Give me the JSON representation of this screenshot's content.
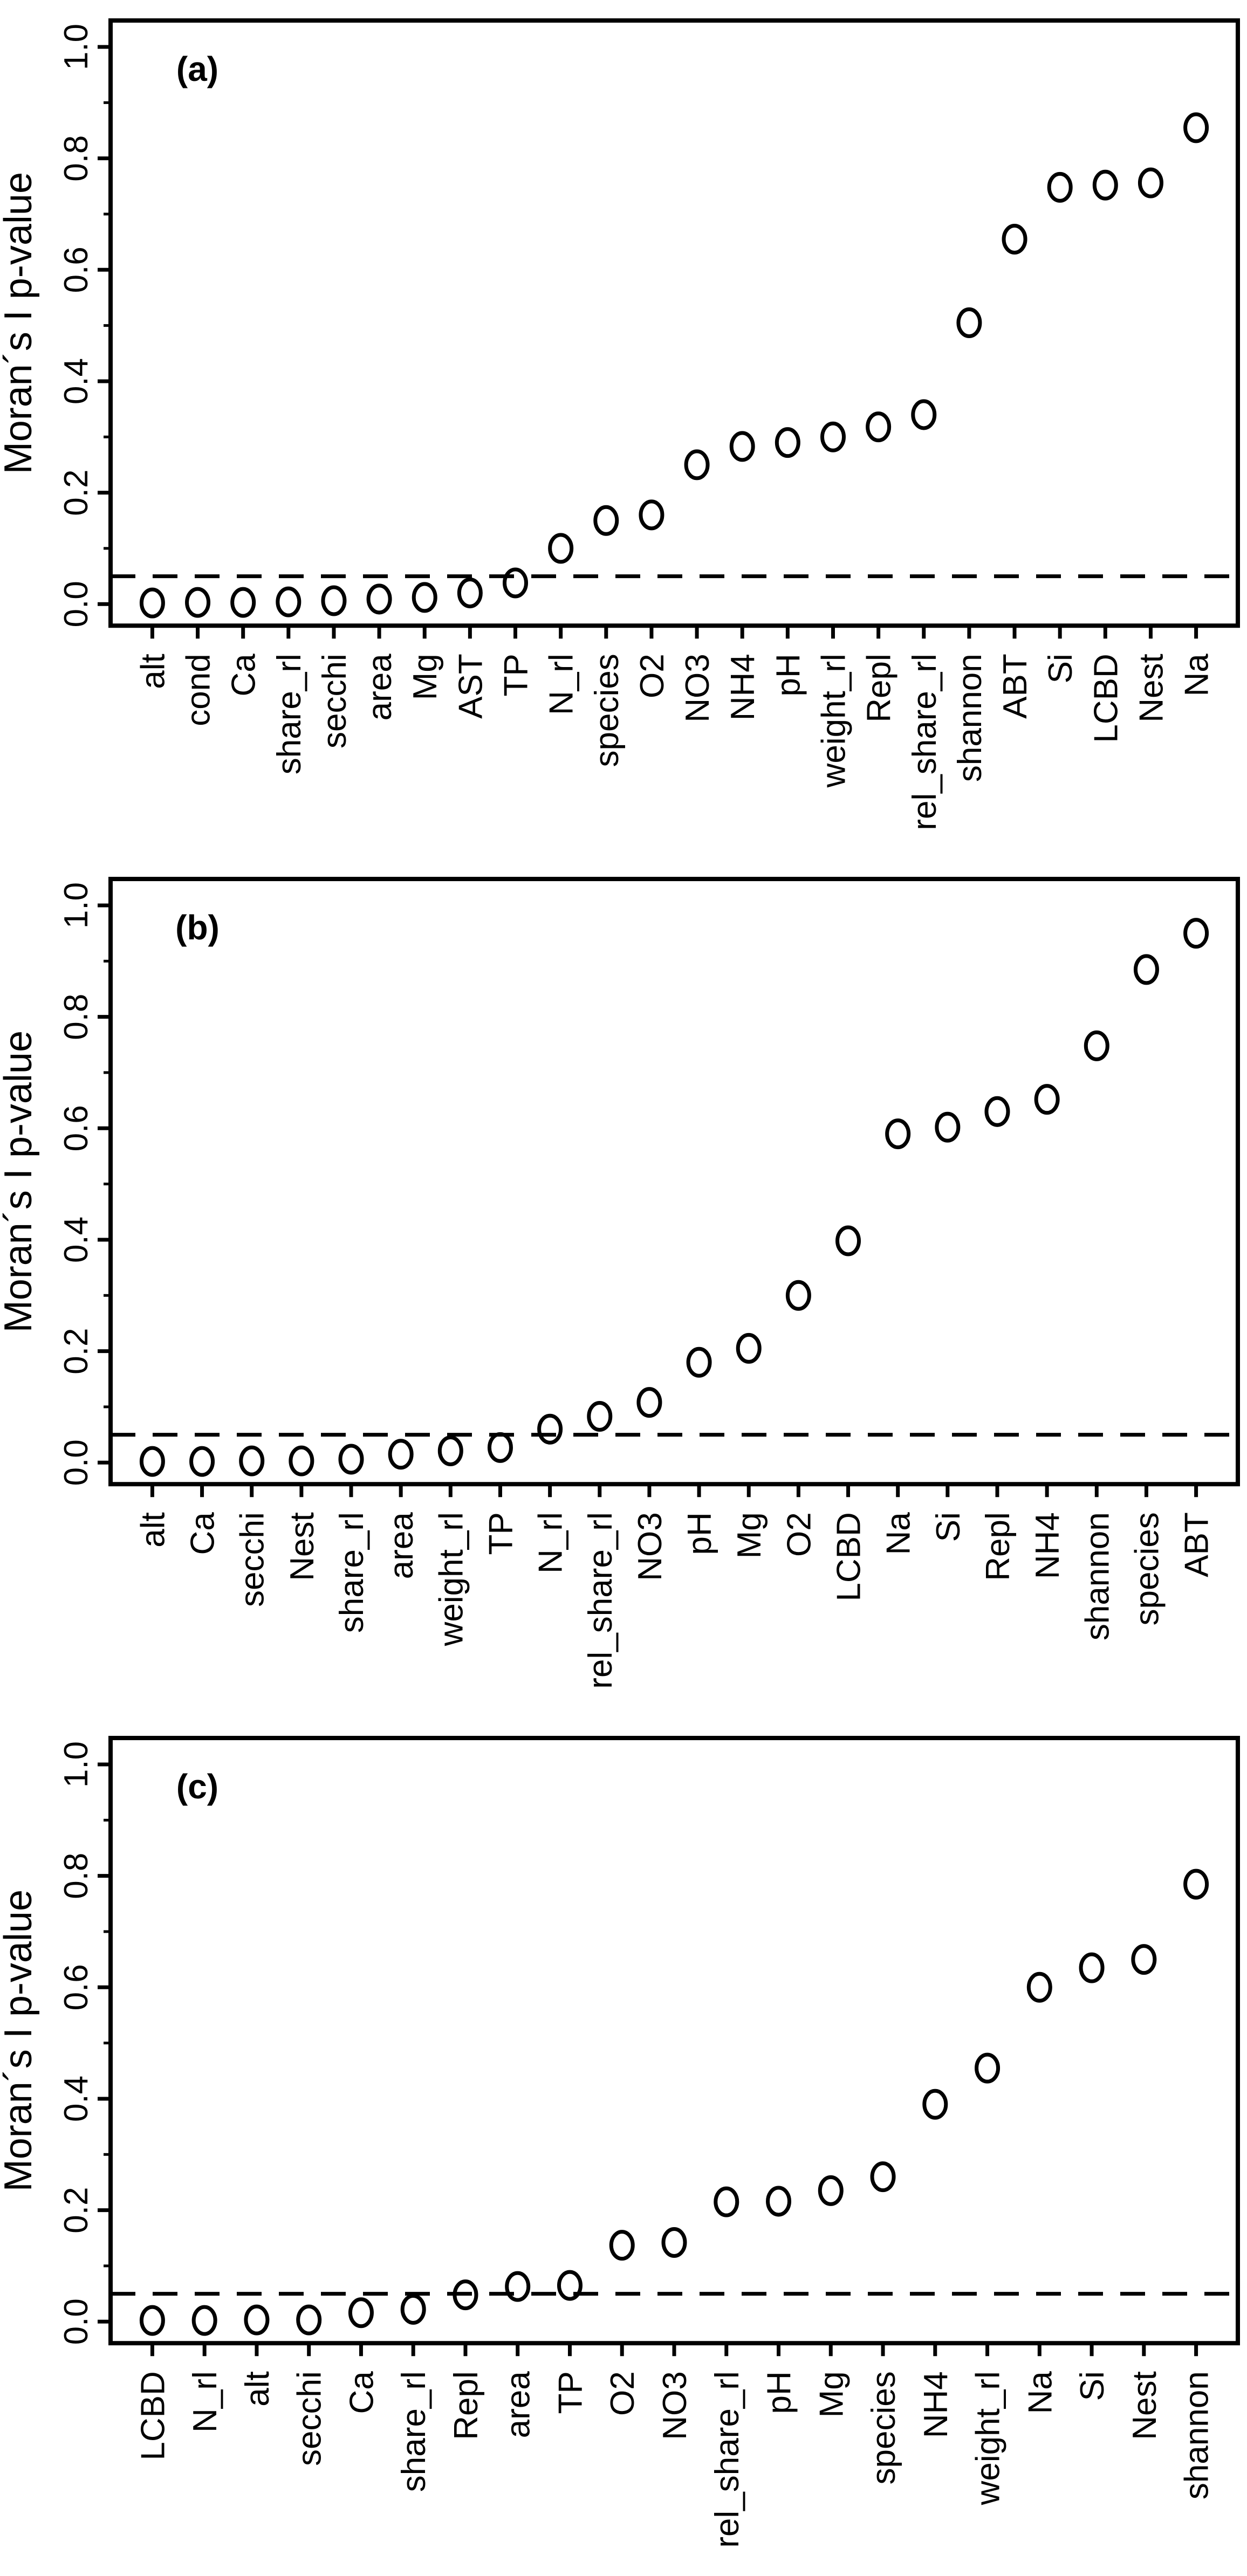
{
  "figure": {
    "background": "#ffffff",
    "ink_color": "#000000",
    "y_axis_title": "Moran´s I p-value",
    "y_tick_labels": [
      "0.0",
      "0.2",
      "0.4",
      "0.6",
      "0.8",
      "1.0"
    ],
    "significance_threshold": 0.05
  },
  "chart_data": [
    {
      "type": "scatter",
      "panel_label": "(a)",
      "ylabel": "Moran´s I p-value",
      "xlabel": "",
      "ylim": [
        0,
        1
      ],
      "y_ticks": [
        0.0,
        0.2,
        0.4,
        0.6,
        0.8,
        1.0
      ],
      "grid": false,
      "marker": "open-circle",
      "dashed_line_y": 0.05,
      "categories": [
        "alt",
        "cond",
        "Ca",
        "share_rl",
        "secchi",
        "area",
        "Mg",
        "AST",
        "TP",
        "N_rl",
        "species",
        "O2",
        "NO3",
        "NH4",
        "pH",
        "weight_rl",
        "Repl",
        "rel_share_rl",
        "shannon",
        "ABT",
        "Si",
        "LCBD",
        "Nest",
        "Na"
      ],
      "values": [
        0.002,
        0.003,
        0.003,
        0.004,
        0.006,
        0.009,
        0.012,
        0.02,
        0.038,
        0.1,
        0.15,
        0.16,
        0.25,
        0.283,
        0.29,
        0.3,
        0.318,
        0.34,
        0.505,
        0.655,
        0.748,
        0.752,
        0.756,
        0.855
      ]
    },
    {
      "type": "scatter",
      "panel_label": "(b)",
      "ylabel": "Moran´s I p-value",
      "xlabel": "",
      "ylim": [
        0,
        1
      ],
      "y_ticks": [
        0.0,
        0.2,
        0.4,
        0.6,
        0.8,
        1.0
      ],
      "grid": false,
      "marker": "open-circle",
      "dashed_line_y": 0.05,
      "categories": [
        "alt",
        "Ca",
        "secchi",
        "Nest",
        "share_rl",
        "area",
        "weight_rl",
        "TP",
        "N_rl",
        "rel_share_rl",
        "NO3",
        "pH",
        "Mg",
        "O2",
        "LCBD",
        "Na",
        "Si",
        "Repl",
        "NH4",
        "shannon",
        "species",
        "ABT"
      ],
      "values": [
        0.002,
        0.002,
        0.003,
        0.003,
        0.006,
        0.015,
        0.021,
        0.027,
        0.06,
        0.083,
        0.108,
        0.18,
        0.205,
        0.3,
        0.398,
        0.59,
        0.602,
        0.63,
        0.652,
        0.748,
        0.885,
        0.95
      ]
    },
    {
      "type": "scatter",
      "panel_label": "(c)",
      "ylabel": "Moran´s I p-value",
      "xlabel": "",
      "ylim": [
        0,
        1
      ],
      "y_ticks": [
        0.0,
        0.2,
        0.4,
        0.6,
        0.8,
        1.0
      ],
      "grid": false,
      "marker": "open-circle",
      "dashed_line_y": 0.05,
      "categories": [
        "LCBD",
        "N_rl",
        "alt",
        "secchi",
        "Ca",
        "share_rl",
        "Repl",
        "area",
        "TP",
        "O2",
        "NO3",
        "rel_share_rl",
        "pH",
        "Mg",
        "species",
        "NH4",
        "weight_rl",
        "Na",
        "Si",
        "Nest",
        "shannon"
      ],
      "values": [
        0.002,
        0.002,
        0.003,
        0.003,
        0.016,
        0.022,
        0.048,
        0.063,
        0.065,
        0.137,
        0.142,
        0.215,
        0.216,
        0.235,
        0.26,
        0.39,
        0.455,
        0.6,
        0.635,
        0.65,
        0.785
      ]
    }
  ]
}
